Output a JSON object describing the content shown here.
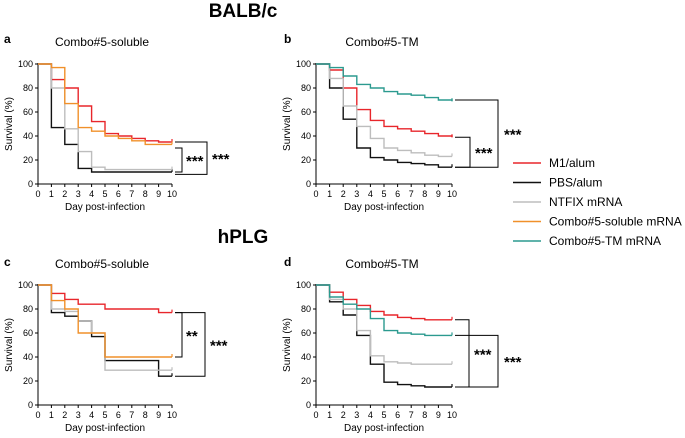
{
  "figure": {
    "section_titles": [
      "BALB/c",
      "hPLG"
    ]
  },
  "legend": [
    {
      "label": "M1/alum",
      "color": "#e8262b"
    },
    {
      "label": "PBS/alum",
      "color": "#111111"
    },
    {
      "label": "NTFIX mRNA",
      "color": "#bdbdbd"
    },
    {
      "label": "Combo#5-soluble mRNA",
      "color": "#f0902a"
    },
    {
      "label": "Combo#5-TM mRNA",
      "color": "#2b9a8f"
    }
  ],
  "chart_data": [
    {
      "type": "line",
      "panel": "a",
      "title": "Combo#5-soluble",
      "xlabel": "Day post-infection",
      "ylabel": "Survival (%)",
      "xlim": [
        0,
        10
      ],
      "ylim": [
        0,
        100
      ],
      "xticks": [
        0,
        1,
        2,
        3,
        4,
        5,
        6,
        7,
        8,
        9,
        10
      ],
      "yticks": [
        0,
        20,
        40,
        60,
        80,
        100
      ],
      "series": [
        {
          "name": "M1/alum",
          "color": "#e8262b",
          "x": [
            0,
            1,
            2,
            3,
            4,
            5,
            6,
            7,
            8,
            9,
            10
          ],
          "y": [
            100,
            87,
            80,
            65,
            52,
            42,
            40,
            38,
            36,
            35,
            35
          ]
        },
        {
          "name": "PBS/alum",
          "color": "#111111",
          "x": [
            0,
            1,
            2,
            3,
            4,
            10
          ],
          "y": [
            100,
            47,
            33,
            13,
            10,
            10
          ]
        },
        {
          "name": "NTFIX mRNA",
          "color": "#bdbdbd",
          "x": [
            0,
            1,
            2,
            3,
            4,
            5,
            10
          ],
          "y": [
            100,
            80,
            46,
            27,
            14,
            12,
            12
          ]
        },
        {
          "name": "Combo#5-soluble mRNA",
          "color": "#f0902a",
          "x": [
            0,
            1,
            2,
            3,
            4,
            5,
            6,
            7,
            8,
            9,
            10
          ],
          "y": [
            100,
            97,
            67,
            47,
            44,
            40,
            38,
            36,
            33,
            33,
            33
          ]
        }
      ],
      "annotations": [
        {
          "text": "***",
          "brackets": [
            [
              30,
              10
            ],
            [
              35,
              8
            ]
          ]
        },
        {
          "text": "***",
          "brackets": [
            [
              35,
              8
            ]
          ]
        }
      ]
    },
    {
      "type": "line",
      "panel": "b",
      "title": "Combo#5-TM",
      "xlabel": "Day post-infection",
      "ylabel": "Survival (%)",
      "xlim": [
        0,
        10
      ],
      "ylim": [
        0,
        100
      ],
      "xticks": [
        0,
        1,
        2,
        3,
        4,
        5,
        6,
        7,
        8,
        9,
        10
      ],
      "yticks": [
        0,
        20,
        40,
        60,
        80,
        100
      ],
      "series": [
        {
          "name": "M1/alum",
          "color": "#e8262b",
          "x": [
            0,
            1,
            2,
            3,
            4,
            5,
            6,
            7,
            8,
            9,
            10
          ],
          "y": [
            100,
            95,
            80,
            62,
            53,
            48,
            46,
            44,
            42,
            40,
            39
          ]
        },
        {
          "name": "PBS/alum",
          "color": "#111111",
          "x": [
            0,
            1,
            2,
            3,
            4,
            5,
            6,
            7,
            8,
            9,
            10
          ],
          "y": [
            100,
            80,
            54,
            30,
            22,
            20,
            18,
            17,
            16,
            14,
            14
          ]
        },
        {
          "name": "NTFIX mRNA",
          "color": "#bdbdbd",
          "x": [
            0,
            1,
            2,
            3,
            4,
            5,
            6,
            7,
            8,
            9,
            10
          ],
          "y": [
            100,
            88,
            65,
            48,
            38,
            30,
            28,
            26,
            24,
            23,
            23
          ]
        },
        {
          "name": "Combo#5-TM mRNA",
          "color": "#2b9a8f",
          "x": [
            0,
            1,
            2,
            3,
            4,
            5,
            6,
            7,
            8,
            9,
            10
          ],
          "y": [
            100,
            97,
            90,
            83,
            80,
            77,
            75,
            74,
            72,
            70,
            69
          ]
        }
      ],
      "annotations": [
        {
          "text": "***",
          "brackets": [
            [
              70,
              14
            ]
          ]
        },
        {
          "text": "***",
          "brackets": [
            [
              39,
              14
            ]
          ]
        }
      ]
    },
    {
      "type": "line",
      "panel": "c",
      "title": "Combo#5-soluble",
      "xlabel": "Day post-infection",
      "ylabel": "Survival (%)",
      "xlim": [
        0,
        10
      ],
      "ylim": [
        0,
        100
      ],
      "xticks": [
        0,
        1,
        2,
        3,
        4,
        5,
        6,
        7,
        8,
        9,
        10
      ],
      "yticks": [
        0,
        20,
        40,
        60,
        80,
        100
      ],
      "series": [
        {
          "name": "M1/alum",
          "color": "#e8262b",
          "x": [
            0,
            1,
            2,
            3,
            5,
            9,
            10
          ],
          "y": [
            100,
            93,
            88,
            84,
            80,
            77,
            77
          ]
        },
        {
          "name": "PBS/alum",
          "color": "#111111",
          "x": [
            0,
            1,
            2,
            3,
            4,
            5,
            9,
            10
          ],
          "y": [
            100,
            77,
            74,
            70,
            57,
            37,
            24,
            24
          ]
        },
        {
          "name": "NTFIX mRNA",
          "color": "#bdbdbd",
          "x": [
            0,
            1,
            2,
            3,
            4,
            5,
            10
          ],
          "y": [
            100,
            80,
            78,
            70,
            60,
            29,
            29
          ]
        },
        {
          "name": "Combo#5-soluble mRNA",
          "color": "#f0902a",
          "x": [
            0,
            1,
            2,
            3,
            5,
            10
          ],
          "y": [
            100,
            87,
            80,
            60,
            40,
            40
          ]
        }
      ],
      "annotations": [
        {
          "text": "**",
          "brackets": [
            [
              77,
              40
            ]
          ]
        },
        {
          "text": "***",
          "brackets": [
            [
              77,
              24
            ]
          ]
        }
      ]
    },
    {
      "type": "line",
      "panel": "d",
      "title": "Combo#5-TM",
      "xlabel": "Day post-infection",
      "ylabel": "Survival (%)",
      "xlim": [
        0,
        10
      ],
      "ylim": [
        0,
        100
      ],
      "xticks": [
        0,
        1,
        2,
        3,
        4,
        5,
        6,
        7,
        8,
        9,
        10
      ],
      "yticks": [
        0,
        20,
        40,
        60,
        80,
        100
      ],
      "series": [
        {
          "name": "M1/alum",
          "color": "#e8262b",
          "x": [
            0,
            1,
            2,
            3,
            4,
            5,
            6,
            7,
            8,
            9,
            10
          ],
          "y": [
            100,
            94,
            88,
            83,
            78,
            75,
            73,
            72,
            71,
            71,
            71
          ]
        },
        {
          "name": "PBS/alum",
          "color": "#111111",
          "x": [
            0,
            1,
            2,
            3,
            4,
            5,
            6,
            7,
            8,
            9,
            10
          ],
          "y": [
            100,
            86,
            75,
            58,
            34,
            19,
            17,
            16,
            15,
            15,
            15
          ]
        },
        {
          "name": "NTFIX mRNA",
          "color": "#bdbdbd",
          "x": [
            0,
            1,
            2,
            3,
            4,
            5,
            6,
            7,
            8,
            9,
            10
          ],
          "y": [
            100,
            88,
            80,
            62,
            41,
            36,
            35,
            34,
            34,
            34,
            34
          ]
        },
        {
          "name": "Combo#5-TM mRNA",
          "color": "#2b9a8f",
          "x": [
            0,
            1,
            2,
            3,
            4,
            5,
            6,
            7,
            8,
            9,
            10
          ],
          "y": [
            100,
            90,
            84,
            80,
            72,
            62,
            60,
            59,
            58,
            58,
            58
          ]
        }
      ],
      "annotations": [
        {
          "text": "***",
          "brackets": [
            [
              58,
              15
            ]
          ]
        },
        {
          "text": "***",
          "brackets": [
            [
              71,
              15
            ]
          ]
        }
      ]
    }
  ]
}
